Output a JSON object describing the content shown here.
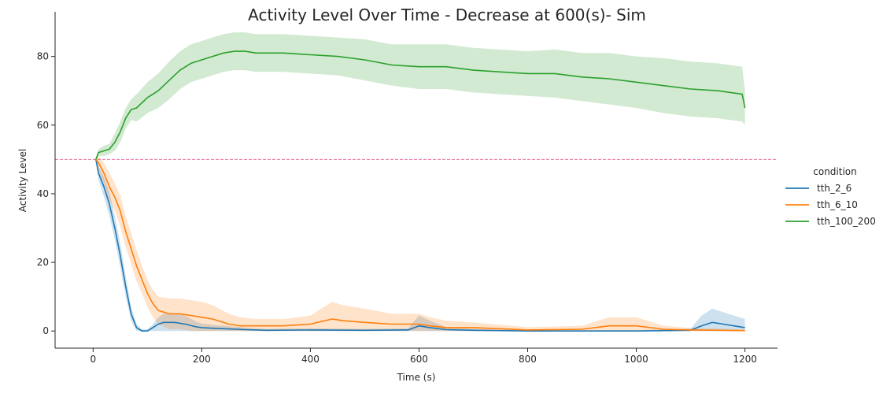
{
  "chart_data": {
    "type": "line",
    "title": "Activity Level Over Time - Decrease at 600(s)- Sim",
    "xlabel": "Time (s)",
    "ylabel": "Activity Level",
    "xlim": [
      -70,
      1260
    ],
    "ylim": [
      -5,
      93
    ],
    "xticks": [
      0,
      200,
      400,
      600,
      800,
      1000,
      1200
    ],
    "yticks": [
      0,
      20,
      40,
      60,
      80
    ],
    "reference_line": {
      "y": 50,
      "color": "#e7609a",
      "style": "dashed"
    },
    "legend": {
      "title": "condition",
      "placement": "right"
    },
    "series": [
      {
        "name": "tth_2_6",
        "color": "#1f77b4",
        "x": [
          5,
          10,
          20,
          30,
          40,
          50,
          60,
          70,
          80,
          90,
          100,
          110,
          120,
          130,
          150,
          170,
          190,
          200,
          220,
          250,
          280,
          320,
          400,
          500,
          580,
          600,
          620,
          650,
          700,
          800,
          1000,
          1100,
          1120,
          1140,
          1160,
          1180,
          1200
        ],
        "y": [
          50,
          46,
          42,
          37,
          30,
          22,
          13,
          5,
          1,
          0,
          0,
          1,
          2,
          2.5,
          2.5,
          2,
          1.2,
          1,
          0.8,
          0.6,
          0.4,
          0.2,
          0.3,
          0.2,
          0.3,
          1.5,
          1,
          0.4,
          0.2,
          0,
          0,
          0.2,
          1.5,
          2.5,
          2,
          1.5,
          1
        ],
        "band": [
          0.5,
          2,
          3,
          3.5,
          3.5,
          3.5,
          3,
          2,
          1,
          0.5,
          0.5,
          1,
          2,
          2.5,
          2.5,
          2.5,
          1.5,
          1.2,
          1,
          0.8,
          0.6,
          0.4,
          0.5,
          0.4,
          0.5,
          3,
          2,
          0.8,
          0.4,
          0.2,
          0.2,
          0.5,
          3,
          4,
          3.5,
          3,
          2.5
        ]
      },
      {
        "name": "tth_6_10",
        "color": "#ff7f0e",
        "x": [
          5,
          10,
          20,
          30,
          40,
          50,
          60,
          70,
          80,
          90,
          100,
          110,
          120,
          140,
          160,
          180,
          200,
          220,
          250,
          270,
          300,
          350,
          400,
          440,
          460,
          500,
          550,
          600,
          620,
          650,
          700,
          800,
          900,
          950,
          1000,
          1050,
          1100,
          1150,
          1200
        ],
        "y": [
          50,
          49,
          46,
          42,
          39,
          35,
          29,
          24,
          19,
          15,
          11,
          8,
          6,
          5,
          5,
          4.5,
          4,
          3.5,
          2,
          1.5,
          1.5,
          1.5,
          2,
          3.5,
          3,
          2.5,
          2,
          2,
          1.5,
          1,
          1,
          0.3,
          0.5,
          1.5,
          1.5,
          0.5,
          0.3,
          0.2,
          0.1
        ],
        "band": [
          0.5,
          2,
          3,
          4,
          4,
          4.5,
          4.5,
          4.5,
          4.5,
          4,
          4,
          4,
          4,
          4.5,
          4.5,
          4.5,
          4.5,
          4,
          3,
          2.5,
          2,
          2,
          2.5,
          5,
          4.5,
          4,
          3,
          3,
          2.5,
          2,
          1.5,
          0.8,
          1,
          2.5,
          2.5,
          1,
          0.6,
          0.5,
          0.4
        ]
      },
      {
        "name": "tth_100_200",
        "color": "#2ca02c",
        "x": [
          5,
          10,
          20,
          30,
          40,
          50,
          60,
          70,
          80,
          100,
          120,
          140,
          160,
          180,
          200,
          220,
          240,
          260,
          280,
          300,
          350,
          400,
          450,
          500,
          550,
          600,
          650,
          700,
          750,
          800,
          850,
          900,
          950,
          1000,
          1050,
          1100,
          1150,
          1195,
          1200
        ],
        "y": [
          50,
          52,
          52.5,
          53,
          55,
          58,
          62,
          64.5,
          65,
          68,
          70,
          73,
          76,
          78,
          79,
          80,
          81,
          81.5,
          81.5,
          81,
          81,
          80.5,
          80,
          79,
          77.5,
          77,
          77,
          76,
          75.5,
          75,
          75,
          74,
          73.5,
          72.5,
          71.5,
          70.5,
          70,
          69,
          65
        ],
        "band": [
          0.5,
          1,
          1.5,
          1.5,
          2.5,
          3,
          3,
          3,
          4,
          4.5,
          5,
          5.5,
          5.5,
          5.5,
          5.5,
          5.5,
          5.5,
          5.5,
          5.5,
          5.5,
          5.5,
          5.5,
          5.5,
          6,
          6,
          6.5,
          6.5,
          6.5,
          6.5,
          6.5,
          7,
          7,
          7.5,
          7.5,
          8,
          8,
          8,
          8,
          5
        ]
      }
    ]
  }
}
